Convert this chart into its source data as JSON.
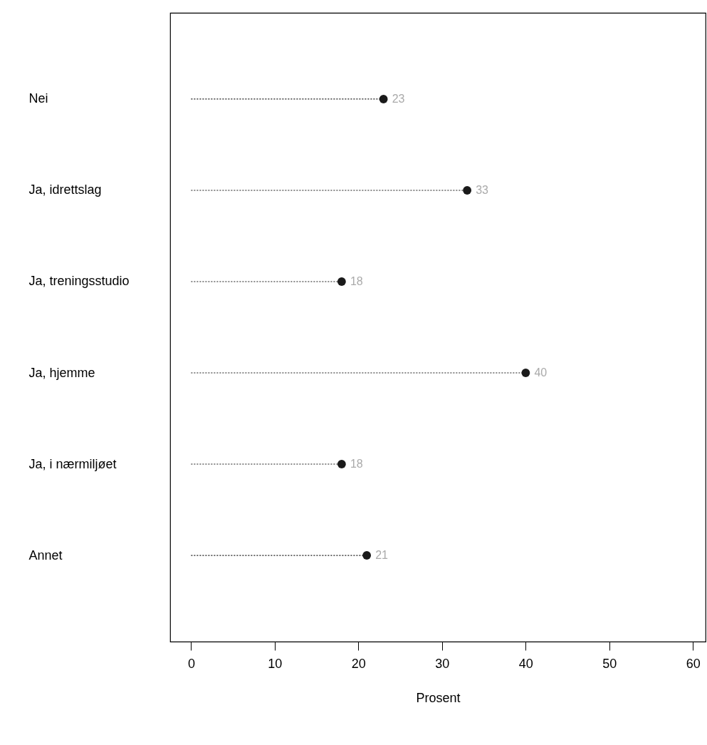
{
  "chart_data": {
    "type": "lollipop",
    "orientation": "horizontal",
    "xlabel": "Prosent",
    "categories": [
      "Nei",
      "Ja, idrettslag",
      "Ja, treningsstudio",
      "Ja, hjemme",
      "Ja, i nærmiljøet",
      "Annet"
    ],
    "values": [
      23,
      33,
      18,
      40,
      18,
      21
    ],
    "color": "#1a1a1a",
    "xlim": [
      -2.5,
      61.5
    ],
    "xticks": [
      0,
      10,
      20,
      30,
      40,
      50,
      60
    ],
    "data_labels": true,
    "line_style": "dotted",
    "marker": "circle",
    "grid": false
  }
}
